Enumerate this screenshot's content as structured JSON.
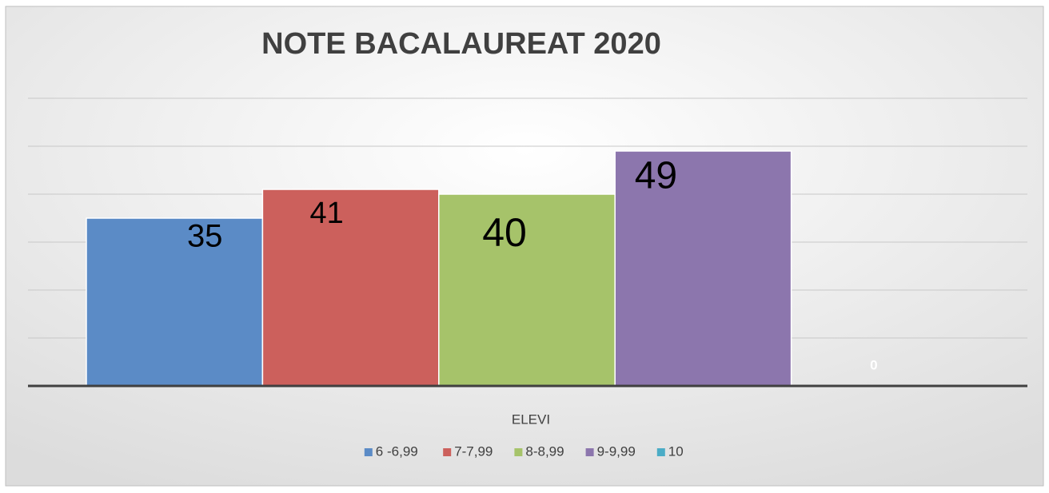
{
  "chart_data": {
    "type": "bar",
    "title": "NOTE BACALAUREAT 2020",
    "categories": [
      "ELEVI"
    ],
    "series": [
      {
        "name": "6 -6,99",
        "color": "#5b8bc6",
        "values": [
          35
        ]
      },
      {
        "name": "7-7,99",
        "color": "#cc605c",
        "values": [
          41
        ]
      },
      {
        "name": "8-8,99",
        "color": "#a6c36a",
        "values": [
          40
        ]
      },
      {
        "name": "9-9,99",
        "color": "#8c76ad",
        "values": [
          49
        ]
      },
      {
        "name": "10",
        "color": "#4bacc6",
        "values": [
          0
        ]
      }
    ],
    "ylim": [
      0,
      60
    ],
    "yticks": [
      0,
      10,
      20,
      30,
      40,
      50,
      60
    ],
    "grid": true,
    "legend": "bottom"
  }
}
